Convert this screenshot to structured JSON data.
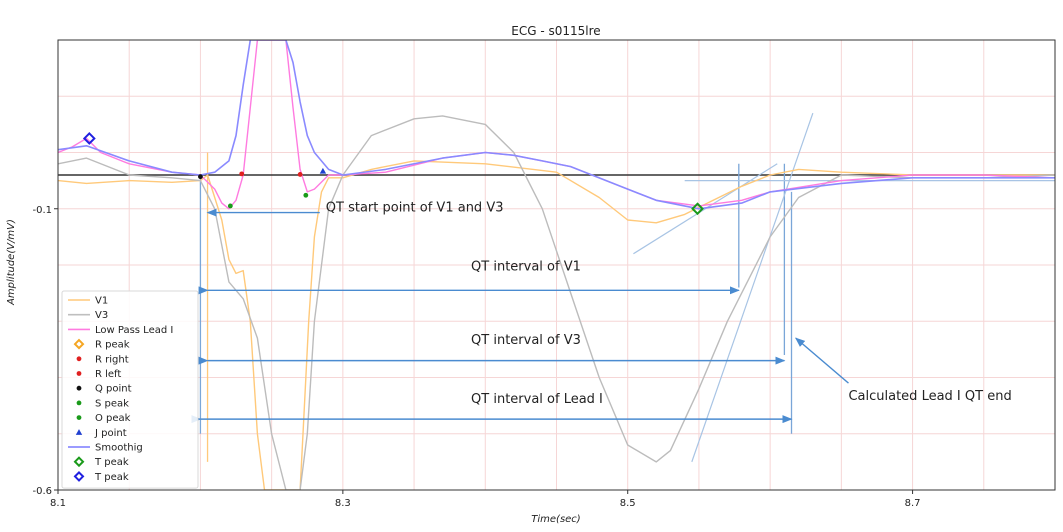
{
  "chart_data": {
    "type": "line",
    "title": "ECG - s0115lre",
    "xlabel": "Time(sec)",
    "ylabel": "Amplitude(V/mV)",
    "xlim": [
      8.1,
      8.8
    ],
    "ylim": [
      -0.6,
      0.2
    ],
    "xticks": [
      8.1,
      8.3,
      8.5,
      8.7
    ],
    "xtick_labels": [
      "8.1",
      "8.3",
      "8.5",
      "8.7"
    ],
    "yticks": [
      -0.1,
      -0.6
    ],
    "ytick_labels": [
      "-0.1",
      "-0.6"
    ],
    "grid": true,
    "legend_position": "lower-left",
    "baseline_y": -0.04,
    "legend": [
      {
        "label": "V1",
        "kind": "line",
        "color": "#ffc97a"
      },
      {
        "label": "V3",
        "kind": "line",
        "color": "#bfbfbf"
      },
      {
        "label": "Low Pass Lead I",
        "kind": "line",
        "color": "#ff7be0"
      },
      {
        "label": "R peak",
        "kind": "diamond",
        "color": "#f5a623"
      },
      {
        "label": "R right",
        "kind": "dot",
        "color": "#e02020"
      },
      {
        "label": "R left",
        "kind": "dot",
        "color": "#e02020"
      },
      {
        "label": "Q point",
        "kind": "dot",
        "color": "#111111"
      },
      {
        "label": "S peak",
        "kind": "dot",
        "color": "#1a9a1a"
      },
      {
        "label": "O peak",
        "kind": "dot",
        "color": "#1a9a1a"
      },
      {
        "label": "J point",
        "kind": "triangle",
        "color": "#2040d0"
      },
      {
        "label": "Smoothig",
        "kind": "line",
        "color": "#7a7aff"
      },
      {
        "label": "T peak",
        "kind": "diamond",
        "color": "#1a9a1a"
      },
      {
        "label": "T peak",
        "kind": "diamond",
        "color": "#2020e0"
      }
    ],
    "series": [
      {
        "key": "v1",
        "color": "#ffc97a",
        "width": 1.4,
        "x": [
          8.1,
          8.12,
          8.15,
          8.18,
          8.2,
          8.205,
          8.21,
          8.215,
          8.22,
          8.225,
          8.23,
          8.235,
          8.24,
          8.245,
          8.26,
          8.27,
          8.272,
          8.276,
          8.28,
          8.285,
          8.29,
          8.3,
          8.32,
          8.35,
          8.4,
          8.45,
          8.48,
          8.5,
          8.52,
          8.54,
          8.56,
          8.58,
          8.6,
          8.62,
          8.65,
          8.7,
          8.75,
          8.8
        ],
        "y": [
          -0.05,
          -0.055,
          -0.05,
          -0.053,
          -0.05,
          -0.04,
          -0.08,
          -0.12,
          -0.19,
          -0.215,
          -0.21,
          -0.3,
          -0.5,
          -0.6,
          -0.6,
          -0.6,
          -0.5,
          -0.3,
          -0.15,
          -0.07,
          -0.045,
          -0.045,
          -0.03,
          -0.015,
          -0.02,
          -0.035,
          -0.08,
          -0.12,
          -0.125,
          -0.11,
          -0.085,
          -0.06,
          -0.04,
          -0.03,
          -0.035,
          -0.04,
          -0.04,
          -0.04
        ]
      },
      {
        "key": "v3",
        "color": "#bcbcbc",
        "width": 1.4,
        "x": [
          8.1,
          8.12,
          8.15,
          8.18,
          8.2,
          8.21,
          8.22,
          8.23,
          8.24,
          8.25,
          8.26,
          8.27,
          8.275,
          8.28,
          8.29,
          8.3,
          8.32,
          8.35,
          8.37,
          8.4,
          8.42,
          8.44,
          8.46,
          8.48,
          8.5,
          8.52,
          8.53,
          8.55,
          8.57,
          8.6,
          8.62,
          8.65,
          8.7,
          8.75,
          8.8
        ],
        "y": [
          -0.02,
          -0.01,
          -0.04,
          -0.045,
          -0.05,
          -0.1,
          -0.23,
          -0.26,
          -0.33,
          -0.5,
          -0.6,
          -0.6,
          -0.5,
          -0.3,
          -0.1,
          -0.04,
          0.03,
          0.06,
          0.065,
          0.05,
          0.0,
          -0.1,
          -0.25,
          -0.4,
          -0.52,
          -0.55,
          -0.53,
          -0.42,
          -0.3,
          -0.15,
          -0.08,
          -0.04,
          -0.045,
          -0.045,
          -0.04
        ]
      },
      {
        "key": "lowpass",
        "color": "#ff7be0",
        "width": 1.4,
        "x": [
          8.1,
          8.11,
          8.12,
          8.13,
          8.15,
          8.18,
          8.2,
          8.21,
          8.215,
          8.22,
          8.225,
          8.23,
          8.235,
          8.24,
          8.26,
          8.265,
          8.27,
          8.275,
          8.28,
          8.29,
          8.3,
          8.33,
          8.37,
          8.4,
          8.42,
          8.44,
          8.46,
          8.5,
          8.52,
          8.55,
          8.58,
          8.6,
          8.65,
          8.7,
          8.75,
          8.8
        ],
        "y": [
          0.0,
          0.01,
          0.025,
          0.0,
          -0.02,
          -0.035,
          -0.04,
          -0.065,
          -0.09,
          -0.1,
          -0.085,
          -0.04,
          0.08,
          0.2,
          0.2,
          0.08,
          -0.03,
          -0.07,
          -0.065,
          -0.04,
          -0.04,
          -0.035,
          -0.01,
          0.0,
          -0.005,
          -0.015,
          -0.025,
          -0.065,
          -0.085,
          -0.095,
          -0.085,
          -0.07,
          -0.05,
          -0.04,
          -0.04,
          -0.045
        ]
      },
      {
        "key": "smooth",
        "color": "#8a8aff",
        "width": 1.6,
        "x": [
          8.1,
          8.12,
          8.15,
          8.18,
          8.2,
          8.21,
          8.22,
          8.225,
          8.23,
          8.235,
          8.24,
          8.26,
          8.265,
          8.27,
          8.275,
          8.28,
          8.29,
          8.3,
          8.33,
          8.37,
          8.4,
          8.42,
          8.44,
          8.46,
          8.5,
          8.52,
          8.55,
          8.58,
          8.6,
          8.65,
          8.7,
          8.75,
          8.8
        ],
        "y": [
          0.005,
          0.012,
          -0.015,
          -0.035,
          -0.04,
          -0.035,
          -0.015,
          0.03,
          0.12,
          0.2,
          0.2,
          0.2,
          0.16,
          0.09,
          0.03,
          0.0,
          -0.03,
          -0.04,
          -0.03,
          -0.01,
          0.0,
          -0.005,
          -0.015,
          -0.025,
          -0.065,
          -0.085,
          -0.1,
          -0.09,
          -0.07,
          -0.055,
          -0.045,
          -0.045,
          -0.045
        ]
      }
    ],
    "markers": [
      {
        "label": "R peak",
        "x": 8.122,
        "y": 0.025,
        "kind": "diamond",
        "color": "#2020e0"
      },
      {
        "label": "T peak",
        "x": 8.549,
        "y": -0.1,
        "kind": "diamond",
        "color": "#1a9a1a"
      },
      {
        "label": "Q point",
        "x": 8.2,
        "y": -0.043,
        "kind": "dot",
        "color": "#111111"
      },
      {
        "label": "R left",
        "x": 8.229,
        "y": -0.038,
        "kind": "dot",
        "color": "#e02020"
      },
      {
        "label": "R right",
        "x": 8.27,
        "y": -0.039,
        "kind": "dot",
        "color": "#e02020"
      },
      {
        "label": "S peak",
        "x": 8.221,
        "y": -0.095,
        "kind": "dot",
        "color": "#1a9a1a"
      },
      {
        "label": "O peak",
        "x": 8.274,
        "y": -0.076,
        "kind": "dot",
        "color": "#1a9a1a"
      },
      {
        "label": "J point",
        "x": 8.286,
        "y": -0.033,
        "kind": "triangle",
        "color": "#2040d0"
      }
    ],
    "vlines": [
      {
        "x": 8.2,
        "y0": -0.04,
        "y1": -0.5,
        "color": "#7aa6d8"
      },
      {
        "x": 8.205,
        "y0": 0.0,
        "y1": -0.55,
        "color": "#ffc97a"
      },
      {
        "x": 8.578,
        "y0": -0.02,
        "y1": -0.24,
        "color": "#7aa6d8"
      },
      {
        "x": 8.61,
        "y0": -0.02,
        "y1": -0.36,
        "color": "#7aa6d8"
      },
      {
        "x": 8.615,
        "y0": -0.07,
        "y1": -0.5,
        "color": "#7aa6d8"
      }
    ],
    "hlines": [
      {
        "y": -0.05,
        "x0": 8.54,
        "x1": 8.8,
        "color": "#a8c4e4"
      }
    ],
    "tangents": [
      {
        "x0": 8.504,
        "y0": -0.18,
        "x1": 8.605,
        "y1": -0.02,
        "color": "#a8c4e4"
      },
      {
        "x0": 8.545,
        "y0": -0.55,
        "x1": 8.63,
        "y1": 0.07,
        "color": "#a8c4e4"
      }
    ],
    "annotations": [
      {
        "text": "QT start point of V1 and V3",
        "x": 8.288,
        "y": -0.105,
        "arrow_to_x": 8.205,
        "arrow_to_y": -0.105
      },
      {
        "text": "QT interval of V1",
        "x": 8.39,
        "y": -0.21,
        "span_x0": 8.205,
        "span_x1": 8.578,
        "span_y": -0.245
      },
      {
        "text": "QT interval of V3",
        "x": 8.39,
        "y": -0.34,
        "span_x0": 8.205,
        "span_x1": 8.61,
        "span_y": -0.37
      },
      {
        "text": "QT interval of Lead I",
        "x": 8.39,
        "y": -0.445,
        "span_x0": 8.2,
        "span_x1": 8.615,
        "span_y": -0.474
      },
      {
        "text": "Calculated Lead I QT end",
        "x": 8.655,
        "y": -0.44,
        "arrow_from_x": 8.655,
        "arrow_from_y": -0.41,
        "arrow_to_x": 8.618,
        "arrow_to_y": -0.33
      }
    ]
  }
}
